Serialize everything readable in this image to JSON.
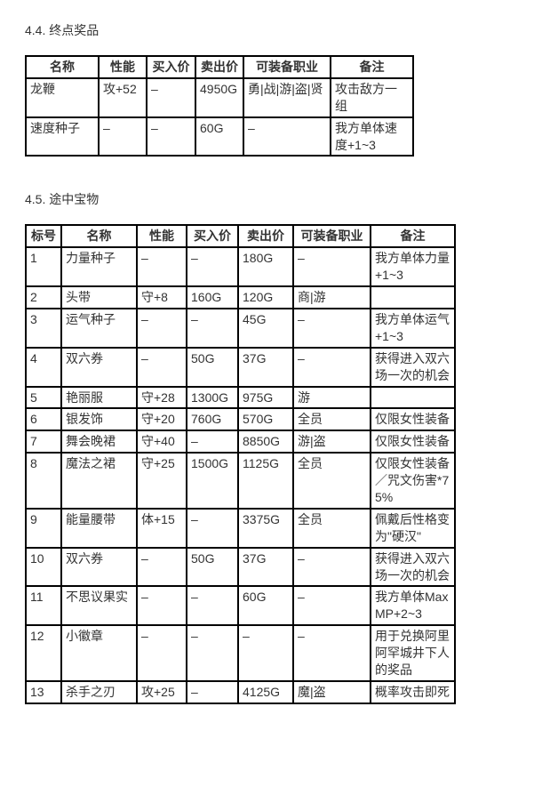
{
  "section44": {
    "title": "4.4. 终点奖品",
    "headers": [
      "名称",
      "性能",
      "买入价",
      "卖出价",
      "可装备职业",
      "备注"
    ],
    "rows": [
      [
        "龙鞭",
        "攻+52",
        "–",
        "4950G",
        "勇|战|游|盗|贤",
        "攻击敌方一组"
      ],
      [
        "速度种子",
        "–",
        "–",
        "60G",
        "–",
        "我方单体速度+1~3"
      ]
    ]
  },
  "section45": {
    "title": "4.5. 途中宝物",
    "headers": [
      "标号",
      "名称",
      "性能",
      "买入价",
      "卖出价",
      "可装备职业",
      "备注"
    ],
    "rows": [
      [
        "1",
        "力量种子",
        "–",
        "–",
        "180G",
        "–",
        "我方单体力量+1~3"
      ],
      [
        "2",
        "头带",
        "守+8",
        "160G",
        "120G",
        "商|游",
        ""
      ],
      [
        "3",
        "运气种子",
        "–",
        "–",
        "45G",
        "–",
        "我方单体运气+1~3"
      ],
      [
        "4",
        "双六券",
        "–",
        "50G",
        "37G",
        "–",
        "获得进入双六场一次的机会"
      ],
      [
        "5",
        "艳丽服",
        "守+28",
        "1300G",
        "975G",
        "游",
        ""
      ],
      [
        "6",
        "银发饰",
        "守+20",
        "760G",
        "570G",
        "全员",
        "仅限女性装备"
      ],
      [
        "7",
        "舞会晚裙",
        "守+40",
        "–",
        "8850G",
        "游|盗",
        "仅限女性装备"
      ],
      [
        "8",
        "魔法之裙",
        "守+25",
        "1500G",
        "1125G",
        "全员",
        "仅限女性装备／咒文伤害*75%"
      ],
      [
        "9",
        "能量腰带",
        "体+15",
        "–",
        "3375G",
        "全员",
        "佩戴后性格变为\"硬汉\""
      ],
      [
        "10",
        "双六券",
        "–",
        "50G",
        "37G",
        "–",
        "获得进入双六场一次的机会"
      ],
      [
        "11",
        "不思议果实",
        "–",
        "–",
        "60G",
        "–",
        "我方单体MaxMP+2~3"
      ],
      [
        "12",
        "小徽章",
        "–",
        "–",
        "–",
        "–",
        "用于兑换阿里阿罕城井下人的奖品"
      ],
      [
        "13",
        "杀手之刃",
        "攻+25",
        "–",
        "4125G",
        "魔|盗",
        "概率攻击即死"
      ]
    ]
  }
}
